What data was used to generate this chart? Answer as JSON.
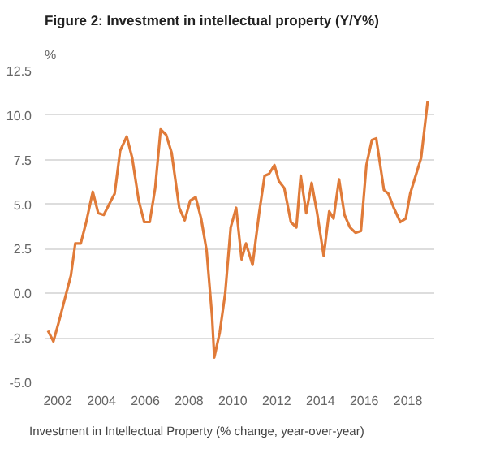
{
  "chart_data": {
    "type": "line",
    "title": "Figure 2: Investment in intellectual property (Y/Y%)",
    "ylabel": "%",
    "series": [
      {
        "name": "Investment in Intellectual Property (% change, year-over-year)",
        "color": "#e07b39",
        "x": [
          2001.55,
          2001.8,
          2002.05,
          2002.6,
          2002.8,
          2003.05,
          2003.3,
          2003.6,
          2003.85,
          2004.1,
          2004.35,
          2004.6,
          2004.85,
          2005.15,
          2005.4,
          2005.7,
          2005.95,
          2006.2,
          2006.45,
          2006.7,
          2006.95,
          2007.2,
          2007.55,
          2007.8,
          2008.05,
          2008.3,
          2008.55,
          2008.8,
          2009.05,
          2009.15,
          2009.4,
          2009.65,
          2009.9,
          2010.15,
          2010.4,
          2010.6,
          2010.9,
          2011.2,
          2011.45,
          2011.65,
          2011.9,
          2012.1,
          2012.35,
          2012.65,
          2012.9,
          2013.1,
          2013.35,
          2013.6,
          2013.85,
          2014.15,
          2014.4,
          2014.6,
          2014.85,
          2015.1,
          2015.35,
          2015.6,
          2015.85,
          2016.1,
          2016.35,
          2016.55,
          2016.9,
          2017.1,
          2017.35,
          2017.65,
          2017.9,
          2018.1,
          2018.35,
          2018.6,
          2018.9
        ],
        "values": [
          -2.1,
          -2.7,
          -1.6,
          1.0,
          2.8,
          2.8,
          4.0,
          5.7,
          4.5,
          4.4,
          5.0,
          5.6,
          8.0,
          8.8,
          7.6,
          5.2,
          4.0,
          4.0,
          5.9,
          9.2,
          8.9,
          7.9,
          4.8,
          4.1,
          5.2,
          5.4,
          4.2,
          2.4,
          -1.3,
          -3.6,
          -2.2,
          0.0,
          3.7,
          4.8,
          1.9,
          2.8,
          1.6,
          4.5,
          6.6,
          6.7,
          7.2,
          6.3,
          5.9,
          4.0,
          3.7,
          6.6,
          4.5,
          6.2,
          4.5,
          2.1,
          4.6,
          4.2,
          6.4,
          4.4,
          3.7,
          3.4,
          3.5,
          7.2,
          8.6,
          8.7,
          5.8,
          5.6,
          4.8,
          4.0,
          4.2,
          5.6,
          6.6,
          7.6,
          10.8
        ]
      }
    ],
    "xlim": [
      2001.4,
      2019.2
    ],
    "xticks": [
      2002,
      2004,
      2006,
      2008,
      2010,
      2012,
      2014,
      2016,
      2018
    ],
    "ylim": [
      -5,
      12.5
    ],
    "yticks": [
      {
        "value": -5,
        "label": "-5.0"
      },
      {
        "value": -2.5,
        "label": "-2.5"
      },
      {
        "value": 0,
        "label": "0.0"
      },
      {
        "value": 2.5,
        "label": "2.5"
      },
      {
        "value": 5,
        "label": "5.0"
      },
      {
        "value": 7.5,
        "label": "7.5"
      },
      {
        "value": 10,
        "label": "10.0"
      },
      {
        "value": 12.5,
        "label": "12.5"
      }
    ],
    "grid": "y",
    "legend": "bottom",
    "marker": "none",
    "line_style": "solid"
  }
}
